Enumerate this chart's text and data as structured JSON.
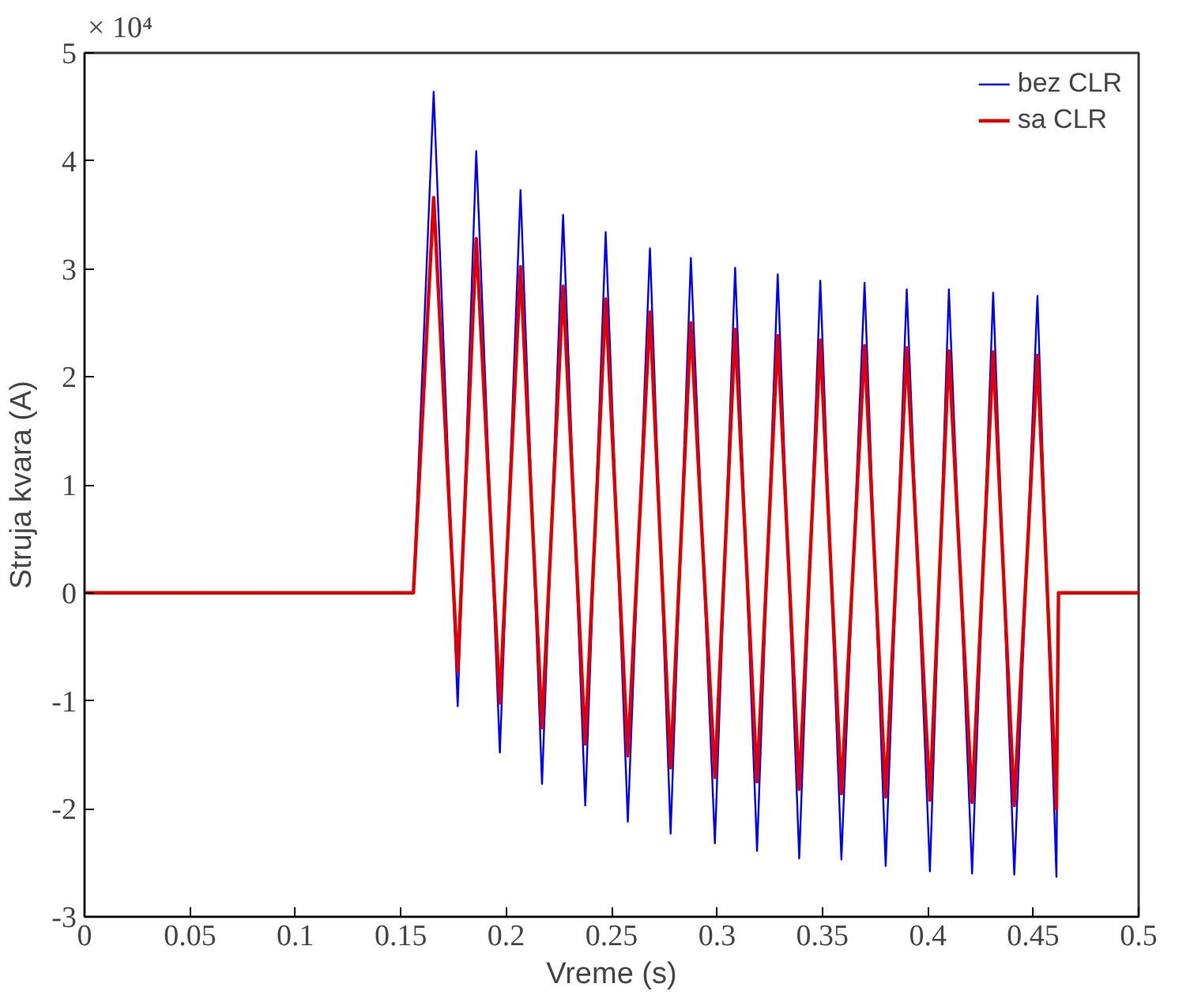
{
  "chart_data": {
    "type": "line",
    "xlabel": "Vreme (s)",
    "ylabel": "Struja kvara (A)",
    "annotations": [
      "× 10⁴"
    ],
    "x": [
      0,
      0.156,
      0.1656,
      0.177,
      0.1858,
      0.197,
      0.2068,
      0.217,
      0.227,
      0.2375,
      0.2472,
      0.2577,
      0.2682,
      0.278,
      0.2876,
      0.299,
      0.3086,
      0.319,
      0.3288,
      0.339,
      0.349,
      0.359,
      0.37,
      0.38,
      0.39,
      0.401,
      0.41,
      0.421,
      0.431,
      0.441,
      0.452,
      0.461,
      0.462,
      0.5
    ],
    "series": [
      {
        "name": "bez CLR",
        "color": "#0000ff",
        "values": [
          0,
          0,
          4.64,
          -1.05,
          4.09,
          -1.48,
          3.73,
          -1.77,
          3.5,
          -1.97,
          3.34,
          -2.12,
          3.19,
          -2.23,
          3.1,
          -2.32,
          3.01,
          -2.39,
          2.95,
          -2.46,
          2.89,
          -2.47,
          2.87,
          -2.53,
          2.81,
          -2.58,
          2.81,
          -2.6,
          2.78,
          -2.61,
          2.75,
          -2.63,
          0,
          0
        ]
      },
      {
        "name": "sa CLR",
        "color": "#e00000",
        "values": [
          0,
          0,
          3.66,
          -0.73,
          3.28,
          -1.02,
          3.02,
          -1.25,
          2.84,
          -1.4,
          2.72,
          -1.51,
          2.6,
          -1.62,
          2.5,
          -1.71,
          2.44,
          -1.75,
          2.38,
          -1.82,
          2.34,
          -1.86,
          2.29,
          -1.89,
          2.27,
          -1.92,
          2.24,
          -1.94,
          2.23,
          -1.97,
          2.2,
          -2.0,
          0,
          0
        ]
      }
    ],
    "xlim": [
      0,
      0.5
    ],
    "xticks": [
      0,
      0.05,
      0.1,
      0.15,
      0.2,
      0.25,
      0.3,
      0.35,
      0.4,
      0.45,
      0.5
    ],
    "ylim": [
      -3,
      5
    ],
    "yticks": [
      -3,
      -2,
      -1,
      0,
      1,
      2,
      3,
      4,
      5
    ],
    "grid": false,
    "legend": "top right",
    "line_style": "solid"
  }
}
